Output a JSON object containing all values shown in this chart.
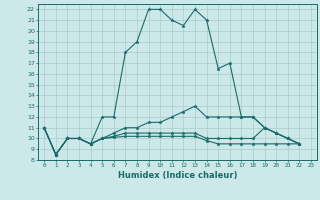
{
  "xlabel": "Humidex (Indice chaleur)",
  "xlim": [
    -0.5,
    23.5
  ],
  "ylim": [
    8,
    22.5
  ],
  "yticks": [
    8,
    9,
    10,
    11,
    12,
    13,
    14,
    15,
    16,
    17,
    18,
    19,
    20,
    21,
    22
  ],
  "xticks": [
    0,
    1,
    2,
    3,
    4,
    5,
    6,
    7,
    8,
    9,
    10,
    11,
    12,
    13,
    14,
    15,
    16,
    17,
    18,
    19,
    20,
    21,
    22,
    23
  ],
  "bg_color": "#cce8e8",
  "line_color": "#1a6b6b",
  "grid_color": "#aacccc",
  "curves": [
    [
      11,
      8.5,
      10,
      10,
      9.5,
      12,
      12,
      18,
      19,
      22,
      22,
      21,
      20.5,
      22,
      21,
      16.5,
      17,
      12,
      12,
      11,
      10.5,
      10,
      9.5
    ],
    [
      11,
      8.5,
      10,
      10,
      9.5,
      10,
      10.5,
      11,
      11,
      11.5,
      11.5,
      12,
      12.5,
      13,
      12,
      12,
      12,
      12,
      12,
      11,
      10.5,
      10,
      9.5
    ],
    [
      11,
      8.5,
      10,
      10,
      9.5,
      10,
      10.2,
      10.5,
      10.5,
      10.5,
      10.5,
      10.5,
      10.5,
      10.5,
      10,
      10,
      10,
      10,
      10,
      11,
      10.5,
      10,
      9.5
    ],
    [
      11,
      8.5,
      10,
      10,
      9.5,
      10,
      10.1,
      10.2,
      10.2,
      10.2,
      10.2,
      10.2,
      10.2,
      10.2,
      9.8,
      9.5,
      9.5,
      9.5,
      9.5,
      9.5,
      9.5,
      9.5,
      9.5
    ]
  ]
}
